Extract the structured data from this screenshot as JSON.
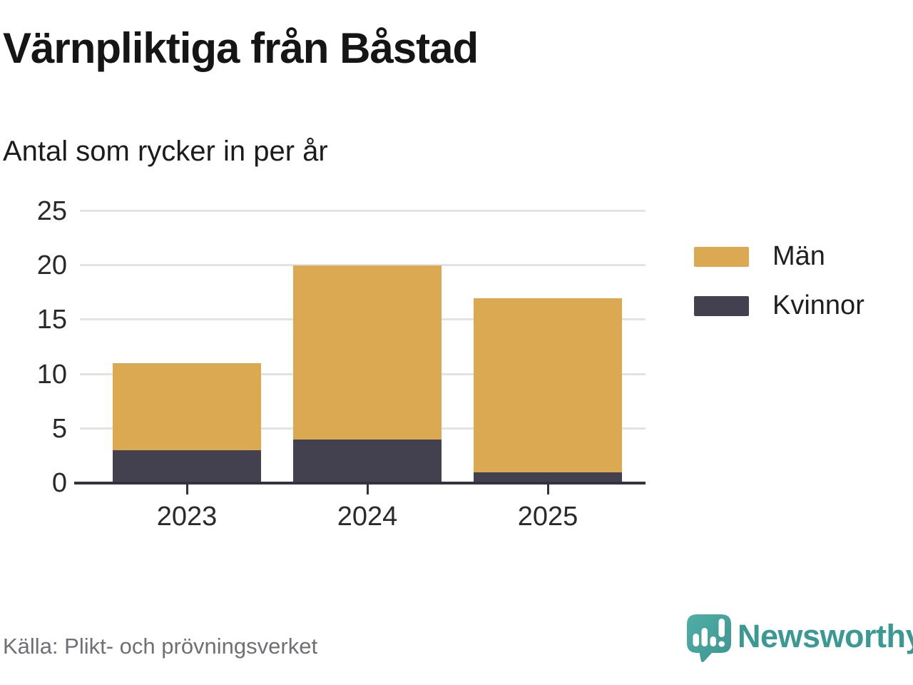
{
  "header": {
    "title": "Värnpliktiga från Båstad",
    "subtitle": "Antal som rycker in per år"
  },
  "chart_data": {
    "type": "bar",
    "stacked": true,
    "title": "Värnpliktiga från Båstad",
    "subtitle": "Antal som rycker in per år",
    "categories": [
      "2023",
      "2024",
      "2025"
    ],
    "series": [
      {
        "name": "Kvinnor",
        "color": "#434050",
        "values": [
          3,
          4,
          1
        ]
      },
      {
        "name": "Män",
        "color": "#DAA951",
        "values": [
          8,
          16,
          16
        ]
      }
    ],
    "stack_totals": [
      11,
      20,
      17
    ],
    "xlabel": "",
    "ylabel": "",
    "ylim": [
      0,
      25
    ],
    "yticks": [
      0,
      5,
      10,
      15,
      20,
      25
    ],
    "grid": true,
    "legend": [
      "Män",
      "Kvinnor"
    ],
    "legend_position": "right"
  },
  "footer": {
    "source": "Källa: Plikt- och prövningsverket",
    "brand": "Newsworthy"
  },
  "colors": {
    "men": "#DAA951",
    "women": "#434050",
    "axis": "#34323E",
    "gridline": "#E3E3E3",
    "brand_teal": "#3A9A93",
    "source_text": "#706F76"
  }
}
